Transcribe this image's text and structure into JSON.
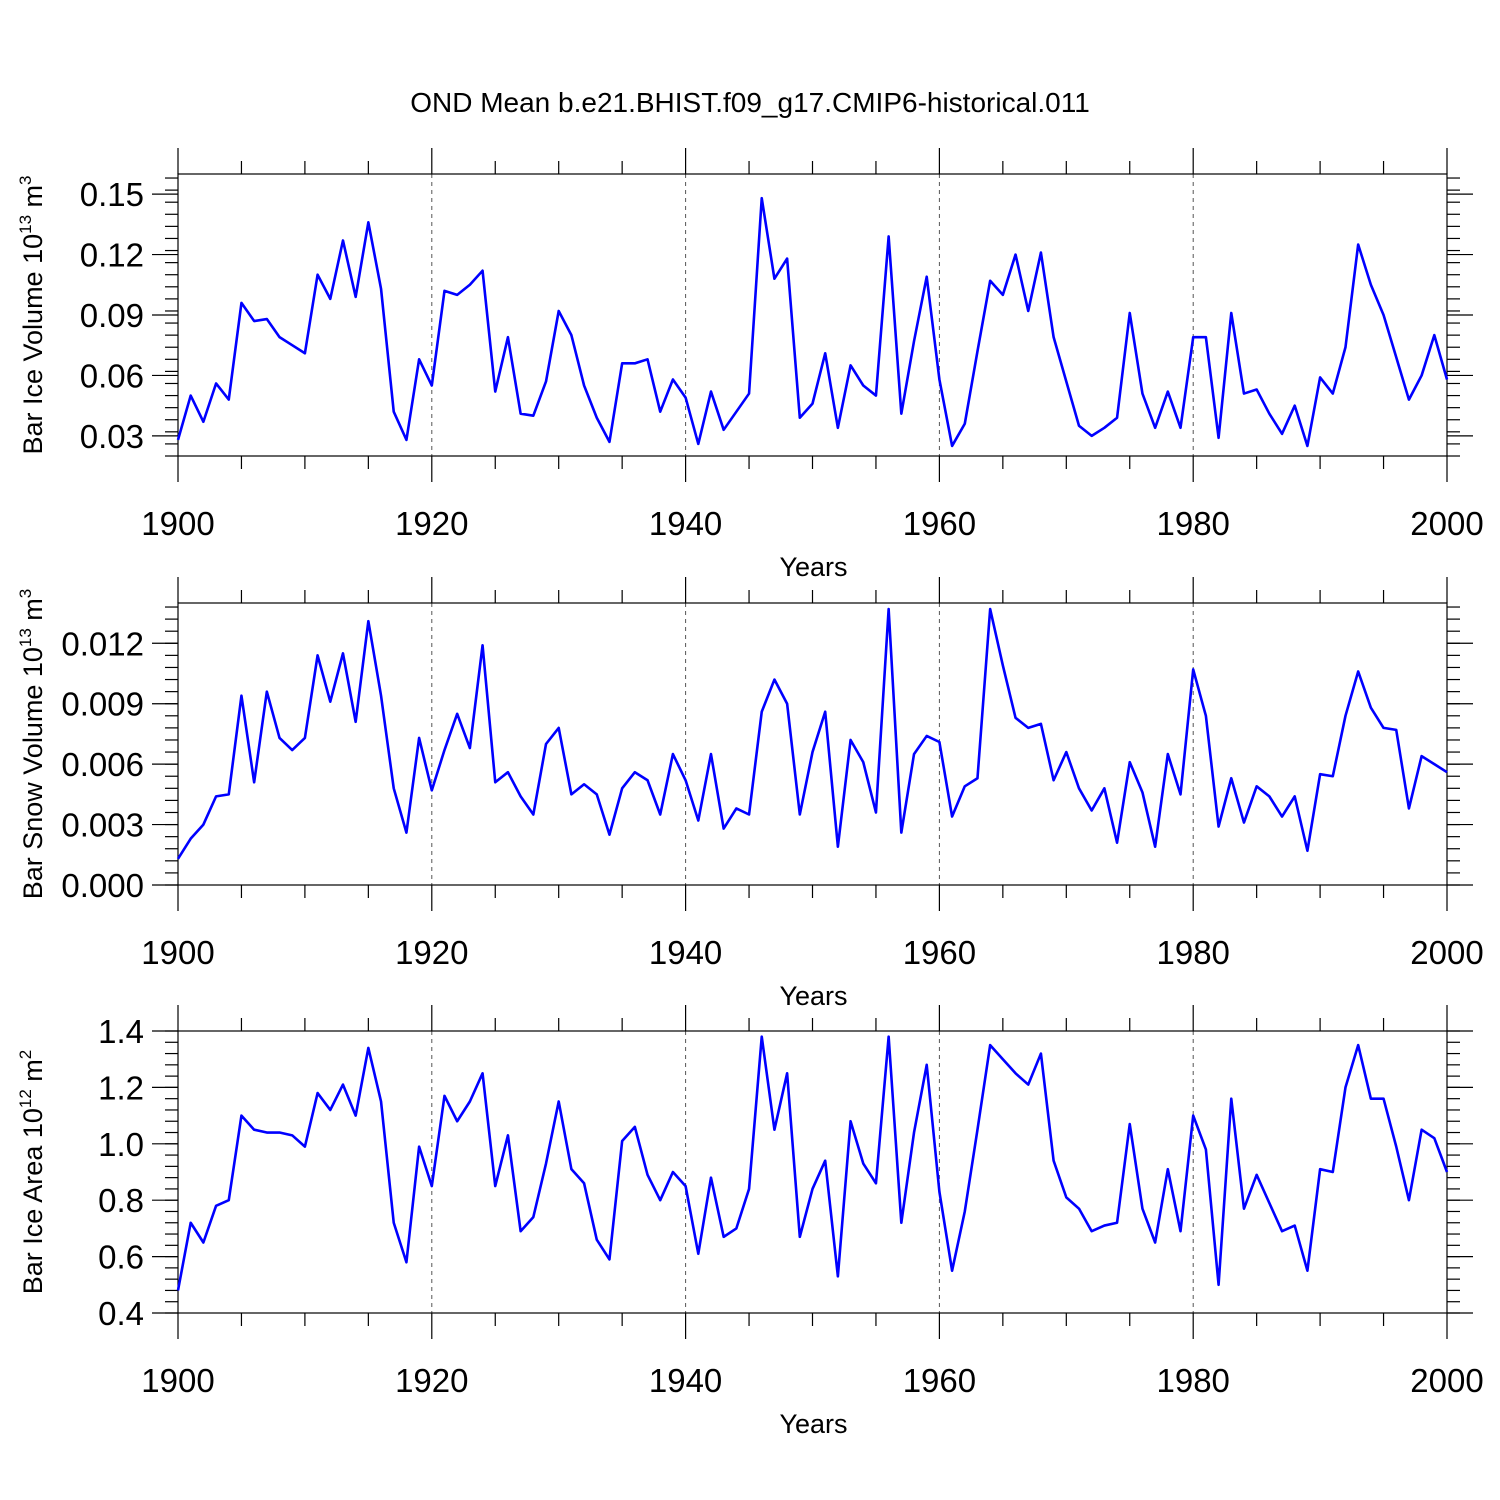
{
  "title": "OND Mean b.e21.BHIST.f09_g17.CMIP6-historical.011",
  "colors": {
    "series": "#0000ff",
    "axis": "#000000",
    "grid": "#555555"
  },
  "chart_data": [
    {
      "type": "line",
      "xlabel": "Years",
      "ylabel": "Bar Ice Volume 10",
      "ylabel_sup": "13",
      "ylabel_unit": " m",
      "ylabel_unit_sup": "3",
      "xlim": [
        1900,
        2000
      ],
      "ylim": [
        0.02,
        0.16
      ],
      "xticks": [
        1900,
        1920,
        1940,
        1960,
        1980,
        2000
      ],
      "xtick_labels": [
        "1900",
        "1920",
        "1940",
        "1960",
        "1980",
        "2000"
      ],
      "yticks": [
        0.03,
        0.06,
        0.09,
        0.12,
        0.15
      ],
      "ytick_labels": [
        "0.03",
        "0.06",
        "0.09",
        "0.12",
        "0.15"
      ],
      "yminor_step": 0.006,
      "grid": "vertical dashed at major x ticks",
      "x_start": 1900,
      "values": [
        0.028,
        0.05,
        0.037,
        0.056,
        0.048,
        0.096,
        0.087,
        0.088,
        0.079,
        0.075,
        0.071,
        0.11,
        0.098,
        0.127,
        0.099,
        0.136,
        0.103,
        0.042,
        0.028,
        0.068,
        0.055,
        0.102,
        0.1,
        0.105,
        0.112,
        0.052,
        0.079,
        0.041,
        0.04,
        0.057,
        0.092,
        0.08,
        0.055,
        0.039,
        0.027,
        0.066,
        0.066,
        0.068,
        0.042,
        0.058,
        0.049,
        0.026,
        0.052,
        0.033,
        0.042,
        0.051,
        0.148,
        0.108,
        0.118,
        0.039,
        0.046,
        0.071,
        0.034,
        0.065,
        0.055,
        0.05,
        0.129,
        0.041,
        0.077,
        0.109,
        0.058,
        0.025,
        0.036,
        0.072,
        0.107,
        0.1,
        0.12,
        0.092,
        0.121,
        0.079,
        0.057,
        0.035,
        0.03,
        0.034,
        0.039,
        0.091,
        0.051,
        0.034,
        0.052,
        0.034,
        0.079,
        0.079,
        0.029,
        0.091,
        0.051,
        0.053,
        0.041,
        0.031,
        0.045,
        0.025,
        0.059,
        0.051,
        0.074,
        0.125,
        0.105,
        0.09,
        0.069,
        0.048,
        0.06,
        0.08,
        0.058
      ]
    },
    {
      "type": "line",
      "xlabel": "Years",
      "ylabel": "Bar Snow Volume 10",
      "ylabel_sup": "13",
      "ylabel_unit": " m",
      "ylabel_unit_sup": "3",
      "xlim": [
        1900,
        2000
      ],
      "ylim": [
        0.0,
        0.014
      ],
      "xticks": [
        1900,
        1920,
        1940,
        1960,
        1980,
        2000
      ],
      "xtick_labels": [
        "1900",
        "1920",
        "1940",
        "1960",
        "1980",
        "2000"
      ],
      "yticks": [
        0.0,
        0.003,
        0.006,
        0.009,
        0.012
      ],
      "ytick_labels": [
        "0.000",
        "0.003",
        "0.006",
        "0.009",
        "0.012"
      ],
      "yminor_step": 0.0006,
      "grid": "vertical dashed at major x ticks",
      "x_start": 1900,
      "values": [
        0.0013,
        0.0023,
        0.003,
        0.0044,
        0.0045,
        0.0094,
        0.0051,
        0.0096,
        0.0073,
        0.0067,
        0.0073,
        0.0114,
        0.0091,
        0.0115,
        0.0081,
        0.0131,
        0.0094,
        0.0048,
        0.0026,
        0.0073,
        0.0047,
        0.0067,
        0.0085,
        0.0068,
        0.0119,
        0.0051,
        0.0056,
        0.0044,
        0.0035,
        0.007,
        0.0078,
        0.0045,
        0.005,
        0.0045,
        0.0025,
        0.0048,
        0.0056,
        0.0052,
        0.0035,
        0.0065,
        0.0052,
        0.0032,
        0.0065,
        0.0028,
        0.0038,
        0.0035,
        0.0086,
        0.0102,
        0.009,
        0.0035,
        0.0066,
        0.0086,
        0.0019,
        0.0072,
        0.0061,
        0.0036,
        0.0137,
        0.0026,
        0.0065,
        0.0074,
        0.0071,
        0.0034,
        0.0049,
        0.0053,
        0.0137,
        0.0109,
        0.0083,
        0.0078,
        0.008,
        0.0052,
        0.0066,
        0.0048,
        0.0037,
        0.0048,
        0.0021,
        0.0061,
        0.0046,
        0.0019,
        0.0065,
        0.0045,
        0.0107,
        0.0084,
        0.0029,
        0.0053,
        0.0031,
        0.0049,
        0.0044,
        0.0034,
        0.0044,
        0.0017,
        0.0055,
        0.0054,
        0.0084,
        0.0106,
        0.0088,
        0.0078,
        0.0077,
        0.0038,
        0.0064,
        0.006,
        0.0056
      ]
    },
    {
      "type": "line",
      "xlabel": "Years",
      "ylabel": "Bar Ice Area 10",
      "ylabel_sup": "12",
      "ylabel_unit": " m",
      "ylabel_unit_sup": "2",
      "xlim": [
        1900,
        2000
      ],
      "ylim": [
        0.4,
        1.4
      ],
      "xticks": [
        1900,
        1920,
        1940,
        1960,
        1980,
        2000
      ],
      "xtick_labels": [
        "1900",
        "1920",
        "1940",
        "1960",
        "1980",
        "2000"
      ],
      "yticks": [
        0.4,
        0.6,
        0.8,
        1.0,
        1.2,
        1.4
      ],
      "ytick_labels": [
        "0.4",
        "0.6",
        "0.8",
        "1.0",
        "1.2",
        "1.4"
      ],
      "yminor_step": 0.04,
      "grid": "vertical dashed at major x ticks",
      "x_start": 1900,
      "values": [
        0.48,
        0.72,
        0.65,
        0.78,
        0.8,
        1.1,
        1.05,
        1.04,
        1.04,
        1.03,
        0.99,
        1.18,
        1.12,
        1.21,
        1.1,
        1.34,
        1.15,
        0.72,
        0.58,
        0.99,
        0.85,
        1.17,
        1.08,
        1.15,
        1.25,
        0.85,
        1.03,
        0.69,
        0.74,
        0.93,
        1.15,
        0.91,
        0.86,
        0.66,
        0.59,
        1.01,
        1.06,
        0.89,
        0.8,
        0.9,
        0.85,
        0.61,
        0.88,
        0.67,
        0.7,
        0.84,
        1.38,
        1.05,
        1.25,
        0.67,
        0.84,
        0.94,
        0.53,
        1.08,
        0.93,
        0.86,
        1.38,
        0.72,
        1.04,
        1.28,
        0.83,
        0.55,
        0.76,
        1.05,
        1.35,
        1.3,
        1.25,
        1.21,
        1.32,
        0.94,
        0.81,
        0.77,
        0.69,
        0.71,
        0.72,
        1.07,
        0.77,
        0.65,
        0.91,
        0.69,
        1.1,
        0.98,
        0.5,
        1.16,
        0.77,
        0.89,
        0.79,
        0.69,
        0.71,
        0.55,
        0.91,
        0.9,
        1.2,
        1.35,
        1.16,
        1.16,
        0.99,
        0.8,
        1.05,
        1.02,
        0.9
      ]
    }
  ]
}
